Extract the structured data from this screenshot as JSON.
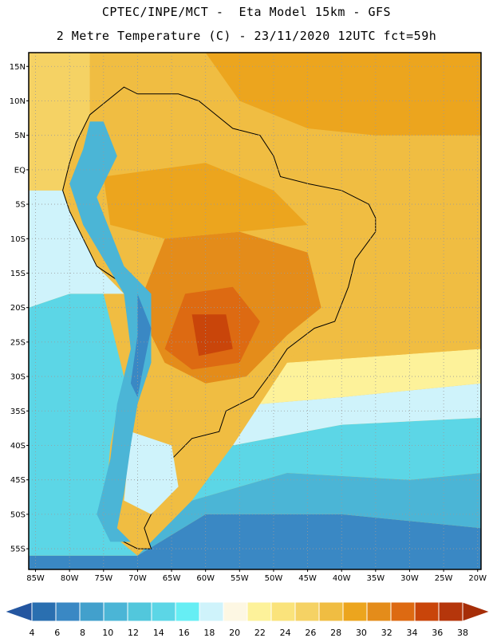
{
  "header": {
    "line1": "CPTEC/INPE/MCT -  Eta Model 15km - GFS",
    "line2": "2 Metre Temperature (C) - 23/11/2020 12UTC fct=59h"
  },
  "map": {
    "lon_range": [
      -86,
      -19.5
    ],
    "lat_range": [
      -58,
      17
    ],
    "lat_ticks": [
      {
        "value": 15,
        "label": "15N"
      },
      {
        "value": 10,
        "label": "10N"
      },
      {
        "value": 5,
        "label": "5N"
      },
      {
        "value": 0,
        "label": "EQ"
      },
      {
        "value": -5,
        "label": "5S"
      },
      {
        "value": -10,
        "label": "10S"
      },
      {
        "value": -15,
        "label": "15S"
      },
      {
        "value": -20,
        "label": "20S"
      },
      {
        "value": -25,
        "label": "25S"
      },
      {
        "value": -30,
        "label": "30S"
      },
      {
        "value": -35,
        "label": "35S"
      },
      {
        "value": -40,
        "label": "40S"
      },
      {
        "value": -45,
        "label": "45S"
      },
      {
        "value": -50,
        "label": "50S"
      },
      {
        "value": -55,
        "label": "55S"
      }
    ],
    "lon_ticks": [
      {
        "value": -85,
        "label": "85W"
      },
      {
        "value": -80,
        "label": "80W"
      },
      {
        "value": -75,
        "label": "75W"
      },
      {
        "value": -70,
        "label": "70W"
      },
      {
        "value": -65,
        "label": "65W"
      },
      {
        "value": -60,
        "label": "60W"
      },
      {
        "value": -55,
        "label": "55W"
      },
      {
        "value": -50,
        "label": "50W"
      },
      {
        "value": -45,
        "label": "45W"
      },
      {
        "value": -40,
        "label": "40W"
      },
      {
        "value": -35,
        "label": "35W"
      },
      {
        "value": -30,
        "label": "30W"
      },
      {
        "value": -25,
        "label": "25W"
      },
      {
        "value": -20,
        "label": "20W"
      }
    ],
    "regions": [
      {
        "name": "south-atlantic-cold",
        "temp": 6,
        "pts": [
          [
            -86,
            -58
          ],
          [
            -19.5,
            -58
          ],
          [
            -19.5,
            -52
          ],
          [
            -40,
            -50
          ],
          [
            -60,
            -50
          ],
          [
            -70,
            -56
          ],
          [
            -86,
            -56
          ]
        ]
      },
      {
        "name": "south-atlantic-cool",
        "temp": 10,
        "pts": [
          [
            -86,
            -56
          ],
          [
            -70,
            -56
          ],
          [
            -62,
            -48
          ],
          [
            -48,
            -44
          ],
          [
            -30,
            -45
          ],
          [
            -19.5,
            -44
          ],
          [
            -19.5,
            -52
          ],
          [
            -40,
            -50
          ],
          [
            -60,
            -50
          ],
          [
            -70,
            -56
          ]
        ]
      },
      {
        "name": "mid-atlantic",
        "temp": 14,
        "pts": [
          [
            -86,
            -56
          ],
          [
            -86,
            -20
          ],
          [
            -80,
            -18
          ],
          [
            -75,
            -18
          ],
          [
            -72,
            -30
          ],
          [
            -74,
            -40
          ],
          [
            -75,
            -52
          ],
          [
            -70,
            -56
          ]
        ]
      },
      {
        "name": "atlantic-band-14",
        "temp": 14,
        "pts": [
          [
            -62,
            -48
          ],
          [
            -56,
            -40
          ],
          [
            -40,
            -37
          ],
          [
            -19.5,
            -36
          ],
          [
            -19.5,
            -44
          ],
          [
            -30,
            -45
          ],
          [
            -48,
            -44
          ]
        ]
      },
      {
        "name": "atlantic-band-18",
        "temp": 18,
        "pts": [
          [
            -56,
            -40
          ],
          [
            -52,
            -34
          ],
          [
            -40,
            -33
          ],
          [
            -19.5,
            -31
          ],
          [
            -19.5,
            -36
          ],
          [
            -40,
            -37
          ]
        ]
      },
      {
        "name": "atlantic-band-22",
        "temp": 22,
        "pts": [
          [
            -52,
            -34
          ],
          [
            -48,
            -28
          ],
          [
            -19.5,
            -26
          ],
          [
            -19.5,
            -31
          ],
          [
            -40,
            -33
          ]
        ]
      },
      {
        "name": "pacific-warm-north",
        "temp": 18,
        "pts": [
          [
            -86,
            -20
          ],
          [
            -86,
            -3
          ],
          [
            -81,
            -3
          ],
          [
            -80,
            -6
          ],
          [
            -76,
            -14
          ],
          [
            -72,
            -18
          ],
          [
            -75,
            -18
          ],
          [
            -80,
            -18
          ]
        ]
      },
      {
        "name": "pacific-tropical",
        "temp": 26,
        "pts": [
          [
            -86,
            -3
          ],
          [
            -86,
            17
          ],
          [
            -77,
            17
          ],
          [
            -77,
            8
          ],
          [
            -80,
            1
          ],
          [
            -81,
            -3
          ]
        ]
      },
      {
        "name": "caribbean",
        "temp": 28,
        "pts": [
          [
            -77,
            8
          ],
          [
            -77,
            17
          ],
          [
            -19.5,
            17
          ],
          [
            -19.5,
            -26
          ],
          [
            -48,
            -28
          ],
          [
            -44,
            -23
          ],
          [
            -40,
            -20
          ],
          [
            -35,
            -8
          ],
          [
            -35,
            -5
          ],
          [
            -50,
            0
          ],
          [
            -60,
            8
          ],
          [
            -72,
            12
          ]
        ]
      },
      {
        "name": "tropical-atlantic-hot",
        "temp": 30,
        "pts": [
          [
            -19.5,
            5
          ],
          [
            -19.5,
            17
          ],
          [
            -60,
            17
          ],
          [
            -55,
            10
          ],
          [
            -45,
            6
          ],
          [
            -35,
            5
          ]
        ]
      },
      {
        "name": "land-west",
        "temp": 28,
        "pts": [
          [
            -77,
            8
          ],
          [
            -72,
            12
          ],
          [
            -70,
            11
          ],
          [
            -64,
            11
          ],
          [
            -61,
            10
          ],
          [
            -56,
            6
          ],
          [
            -52,
            5
          ],
          [
            -50,
            2
          ],
          [
            -49,
            -1
          ],
          [
            -45,
            -2
          ],
          [
            -40,
            -3
          ],
          [
            -36,
            -5
          ],
          [
            -35,
            -7
          ],
          [
            -35,
            -9
          ],
          [
            -38,
            -13
          ],
          [
            -39,
            -17
          ],
          [
            -41,
            -22
          ],
          [
            -44,
            -23
          ],
          [
            -48,
            -26
          ],
          [
            -50,
            -29
          ],
          [
            -53,
            -33
          ],
          [
            -57,
            -35
          ],
          [
            -58,
            -38
          ],
          [
            -62,
            -39
          ],
          [
            -65,
            -42
          ],
          [
            -65,
            -46
          ],
          [
            -68,
            -50
          ],
          [
            -69,
            -52
          ],
          [
            -68,
            -55
          ],
          [
            -70,
            -55
          ],
          [
            -74,
            -53
          ],
          [
            -75,
            -48
          ],
          [
            -73,
            -42
          ],
          [
            -73,
            -35
          ],
          [
            -71,
            -28
          ],
          [
            -70,
            -18
          ],
          [
            -76,
            -14
          ],
          [
            -80,
            -6
          ],
          [
            -81,
            -3
          ],
          [
            -80,
            1
          ],
          [
            -79,
            4
          ],
          [
            -77,
            8
          ]
        ]
      },
      {
        "name": "interior-hot",
        "temp": 32,
        "pts": [
          [
            -66,
            -10
          ],
          [
            -55,
            -9
          ],
          [
            -45,
            -12
          ],
          [
            -43,
            -20
          ],
          [
            -48,
            -24
          ],
          [
            -54,
            -30
          ],
          [
            -60,
            -31
          ],
          [
            -66,
            -28
          ],
          [
            -70,
            -20
          ]
        ]
      },
      {
        "name": "chaco-hotter",
        "temp": 34,
        "pts": [
          [
            -63,
            -18
          ],
          [
            -56,
            -17
          ],
          [
            -52,
            -22
          ],
          [
            -55,
            -28
          ],
          [
            -62,
            -29
          ],
          [
            -66,
            -26
          ]
        ]
      },
      {
        "name": "chaco-hottest",
        "temp": 36,
        "pts": [
          [
            -62,
            -21
          ],
          [
            -57,
            -21
          ],
          [
            -56,
            -26
          ],
          [
            -61,
            -27
          ]
        ]
      },
      {
        "name": "amazon-warm",
        "temp": 30,
        "pts": [
          [
            -75,
            -1
          ],
          [
            -60,
            1
          ],
          [
            -50,
            -3
          ],
          [
            -45,
            -8
          ],
          [
            -55,
            -9
          ],
          [
            -66,
            -10
          ],
          [
            -74,
            -8
          ]
        ]
      },
      {
        "name": "patagonia-cool",
        "temp": 18,
        "pts": [
          [
            -71,
            -38
          ],
          [
            -65,
            -40
          ],
          [
            -64,
            -46
          ],
          [
            -68,
            -50
          ],
          [
            -72,
            -48
          ]
        ]
      },
      {
        "name": "andes-cold",
        "temp": 10,
        "pts": [
          [
            -77,
            7
          ],
          [
            -75,
            7
          ],
          [
            -73,
            2
          ],
          [
            -76,
            -4
          ],
          [
            -72,
            -14
          ],
          [
            -68,
            -18
          ],
          [
            -68,
            -28
          ],
          [
            -70,
            -34
          ],
          [
            -71,
            -40
          ],
          [
            -72,
            -47
          ],
          [
            -73,
            -52
          ],
          [
            -71,
            -54
          ],
          [
            -74,
            -54
          ],
          [
            -76,
            -50
          ],
          [
            -74,
            -42
          ],
          [
            -73,
            -34
          ],
          [
            -71,
            -26
          ],
          [
            -72,
            -18
          ],
          [
            -78,
            -8
          ],
          [
            -80,
            -2
          ],
          [
            -78,
            3
          ]
        ]
      },
      {
        "name": "andes-coldest",
        "temp": 6,
        "pts": [
          [
            -70,
            -18
          ],
          [
            -68,
            -23
          ],
          [
            -69,
            -28
          ],
          [
            -70,
            -33
          ],
          [
            -71,
            -31
          ],
          [
            -70,
            -24
          ]
        ]
      }
    ]
  },
  "colorbar": {
    "levels": [
      "4",
      "6",
      "8",
      "10",
      "12",
      "14",
      "16",
      "18",
      "20",
      "22",
      "24",
      "26",
      "28",
      "30",
      "32",
      "34",
      "36",
      "38"
    ],
    "colors": [
      "#2a6fb0",
      "#3a88c4",
      "#42a0cc",
      "#4bb5d6",
      "#52c7dc",
      "#5cd6e6",
      "#66eef4",
      "#cff3fb",
      "#fdf7e3",
      "#fdf29a",
      "#fae37b",
      "#f5d264",
      "#f0bd42",
      "#eca51e",
      "#e48c1a",
      "#dd6a12",
      "#c9450a",
      "#b5360b"
    ],
    "low_arrow_color": "#2456a0",
    "high_arrow_color": "#a62e08"
  }
}
